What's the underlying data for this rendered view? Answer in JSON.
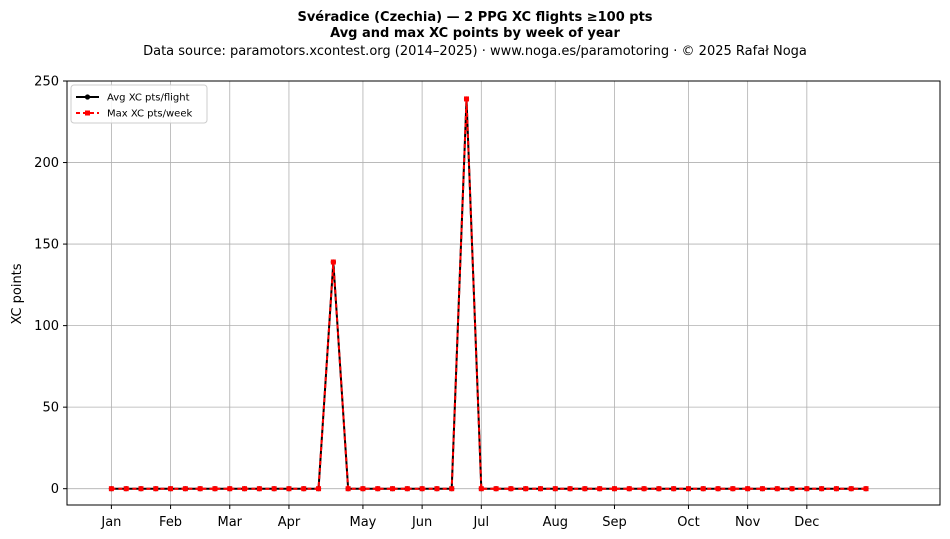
{
  "chart_data": {
    "type": "line",
    "title": "Svéradice (Czechia)  —  2 PPG XC flights ≥100 pts",
    "subtitle": "Avg and max XC points by week of year",
    "source_note": "Data source: paramotors.xcontest.org (2014–2025)  ·  www.noga.es/paramotoring  ·  © 2025 Rafał Noga",
    "xlabel": "",
    "ylabel": "XC points",
    "ylim": [
      -10,
      250
    ],
    "xlim": [
      -3,
      56
    ],
    "yticks": [
      0,
      50,
      100,
      150,
      200,
      250
    ],
    "xticks": [
      {
        "x": 0,
        "label": "Jan"
      },
      {
        "x": 4,
        "label": "Feb"
      },
      {
        "x": 8,
        "label": "Mar"
      },
      {
        "x": 12,
        "label": "Apr"
      },
      {
        "x": 17,
        "label": "May"
      },
      {
        "x": 21,
        "label": "Jun"
      },
      {
        "x": 25,
        "label": "Jul"
      },
      {
        "x": 30,
        "label": "Aug"
      },
      {
        "x": 34,
        "label": "Sep"
      },
      {
        "x": 39,
        "label": "Oct"
      },
      {
        "x": 43,
        "label": "Nov"
      },
      {
        "x": 47,
        "label": "Dec"
      }
    ],
    "grid": true,
    "legend_position": "top-left",
    "series": [
      {
        "name": "Avg XC pts/flight",
        "color": "#000000",
        "line_style": "solid",
        "marker": "circle",
        "values": [
          0,
          0,
          0,
          0,
          0,
          0,
          0,
          0,
          0,
          0,
          0,
          0,
          0,
          0,
          0,
          139,
          0,
          0,
          0,
          0,
          0,
          0,
          0,
          0,
          239,
          0,
          0,
          0,
          0,
          0,
          0,
          0,
          0,
          0,
          0,
          0,
          0,
          0,
          0,
          0,
          0,
          0,
          0,
          0,
          0,
          0,
          0,
          0,
          0,
          0,
          0,
          0
        ]
      },
      {
        "name": "Max XC pts/week",
        "color": "#ff0000",
        "line_style": "dashed",
        "marker": "square",
        "values": [
          0,
          0,
          0,
          0,
          0,
          0,
          0,
          0,
          0,
          0,
          0,
          0,
          0,
          0,
          0,
          139,
          0,
          0,
          0,
          0,
          0,
          0,
          0,
          0,
          239,
          0,
          0,
          0,
          0,
          0,
          0,
          0,
          0,
          0,
          0,
          0,
          0,
          0,
          0,
          0,
          0,
          0,
          0,
          0,
          0,
          0,
          0,
          0,
          0,
          0,
          0,
          0
        ]
      }
    ]
  }
}
